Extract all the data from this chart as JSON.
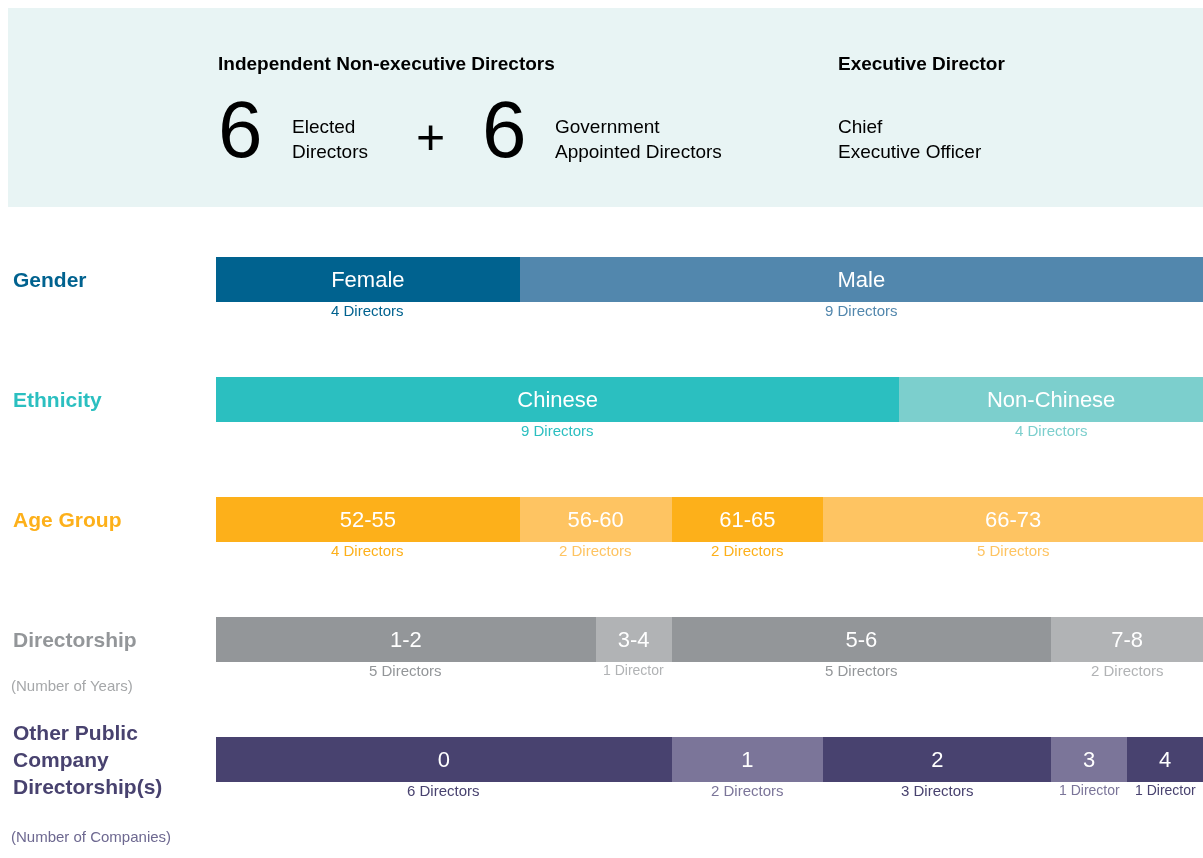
{
  "chart_data": [
    {
      "type": "other",
      "annotations": [
        "Independent Non-executive Directors",
        "6",
        "Elected Directors",
        "+",
        "6",
        "Government Appointed Directors",
        "Executive Director",
        "Chief Executive Officer"
      ]
    },
    {
      "type": "bar",
      "orientation": "horizontal",
      "stacked": true,
      "categories": [
        "Gender",
        "Ethnicity",
        "Age Group",
        "Directorship",
        "Other Public Company Directorship(s)"
      ],
      "annotations": [
        "(Number of Years)",
        "(Number of Companies)"
      ],
      "series": [
        {
          "name": "Female",
          "color": "#00628f",
          "values": [
            4,
            null,
            null,
            null,
            null
          ],
          "value_labels": [
            "4 Directors",
            null,
            null,
            null,
            null
          ]
        },
        {
          "name": "Male",
          "color": "#5287ad",
          "values": [
            9,
            null,
            null,
            null,
            null
          ],
          "value_labels": [
            "9 Directors",
            null,
            null,
            null,
            null
          ]
        },
        {
          "name": "Chinese",
          "color": "#2bbfc0",
          "values": [
            null,
            9,
            null,
            null,
            null
          ],
          "value_labels": [
            null,
            "9 Directors",
            null,
            null,
            null
          ]
        },
        {
          "name": "Non-Chinese",
          "color": "#7ccfcd",
          "values": [
            null,
            4,
            null,
            null,
            null
          ],
          "value_labels": [
            null,
            "4 Directors",
            null,
            null,
            null
          ]
        },
        {
          "name": "52-55",
          "color": "#fdb01a",
          "values": [
            null,
            null,
            4,
            null,
            null
          ],
          "value_labels": [
            null,
            null,
            "4 Directors",
            null,
            null
          ]
        },
        {
          "name": "56-60",
          "color": "#fec462",
          "values": [
            null,
            null,
            2,
            null,
            null
          ],
          "value_labels": [
            null,
            null,
            "2 Directors",
            null,
            null
          ]
        },
        {
          "name": "61-65",
          "color": "#fdb01a",
          "values": [
            null,
            null,
            2,
            null,
            null
          ],
          "value_labels": [
            null,
            null,
            "2 Directors",
            null,
            null
          ]
        },
        {
          "name": "66-73",
          "color": "#fec462",
          "values": [
            null,
            null,
            5,
            null,
            null
          ],
          "value_labels": [
            null,
            null,
            "5 Directors",
            null,
            null
          ]
        },
        {
          "name": "1-2",
          "color": "#939699",
          "values": [
            null,
            null,
            null,
            5,
            null
          ],
          "value_labels": [
            null,
            null,
            null,
            "5 Directors",
            null
          ]
        },
        {
          "name": "3-4",
          "color": "#b1b3b5",
          "values": [
            null,
            null,
            null,
            1,
            null
          ],
          "value_labels": [
            null,
            null,
            null,
            "1 Director",
            null
          ]
        },
        {
          "name": "5-6",
          "color": "#939699",
          "values": [
            null,
            null,
            null,
            5,
            null
          ],
          "value_labels": [
            null,
            null,
            null,
            "5 Directors",
            null
          ]
        },
        {
          "name": "7-8",
          "color": "#b1b3b5",
          "values": [
            null,
            null,
            null,
            2,
            null
          ],
          "value_labels": [
            null,
            null,
            null,
            "2 Directors",
            null
          ]
        },
        {
          "name": "0",
          "color": "#48426f",
          "values": [
            null,
            null,
            null,
            null,
            6
          ],
          "value_labels": [
            null,
            null,
            null,
            null,
            "6 Directors"
          ]
        },
        {
          "name": "1",
          "color": "#7b7599",
          "values": [
            null,
            null,
            null,
            null,
            2
          ],
          "value_labels": [
            null,
            null,
            null,
            null,
            "2 Directors"
          ]
        },
        {
          "name": "2",
          "color": "#48426f",
          "values": [
            null,
            null,
            null,
            null,
            3
          ],
          "value_labels": [
            null,
            null,
            null,
            null,
            "3 Directors"
          ]
        },
        {
          "name": "3",
          "color": "#7b7599",
          "values": [
            null,
            null,
            null,
            null,
            1
          ],
          "value_labels": [
            null,
            null,
            null,
            null,
            "1 Director"
          ]
        },
        {
          "name": "4",
          "color": "#48426f",
          "values": [
            null,
            null,
            null,
            null,
            1
          ],
          "value_labels": [
            null,
            null,
            null,
            null,
            "1 Director"
          ]
        }
      ]
    }
  ]
}
